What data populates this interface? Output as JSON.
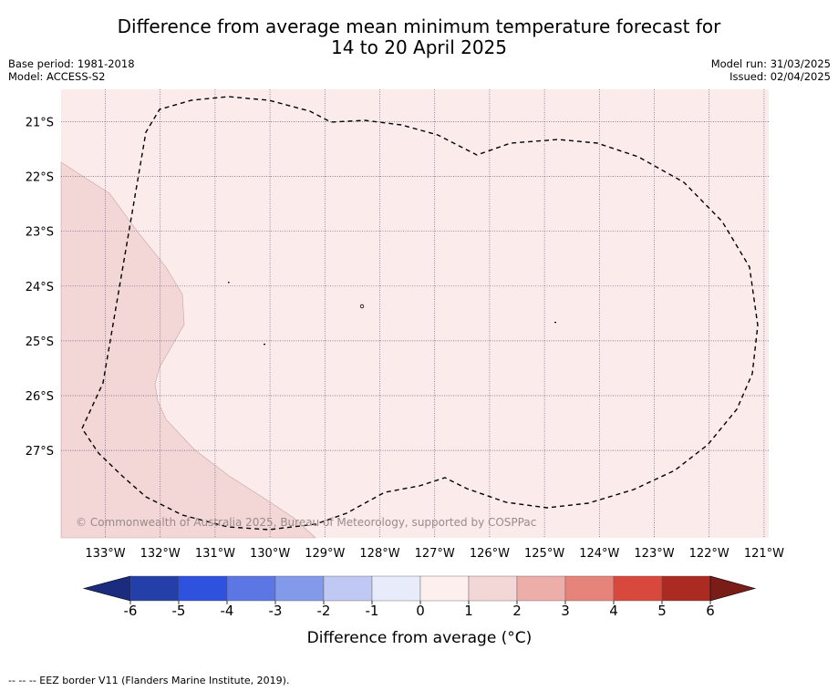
{
  "title_line1": "Difference from average mean minimum temperature forecast for",
  "title_line2": "14 to 20 April 2025",
  "base_period": "Base period: 1981-2018",
  "model": "Model: ACCESS-S2",
  "model_run": "Model run: 31/03/2025",
  "issued": "Issued: 02/04/2025",
  "copyright": "© Commonwealth of Australia 2025, Bureau of Meteorology, supported by COSPPac",
  "footer": "--  --  -- EEZ border V11 (Flanders Marine Institute, 2019).",
  "map": {
    "lat_labels": [
      "21°S",
      "22°S",
      "23°S",
      "24°S",
      "25°S",
      "26°S",
      "27°S"
    ],
    "lon_labels": [
      "133°W",
      "132°W",
      "131°W",
      "130°W",
      "129°W",
      "128°W",
      "127°W",
      "126°W",
      "125°W",
      "124°W",
      "123°W",
      "122°W",
      "121°W"
    ],
    "background_color": "#fbeceb",
    "anomaly_region_color": "#f3d6d6"
  },
  "colorbar": {
    "label": "Difference from average (°C)",
    "ticks": [
      "-6",
      "-5",
      "-4",
      "-3",
      "-2",
      "-1",
      "0",
      "1",
      "2",
      "3",
      "4",
      "5",
      "6"
    ],
    "colors": [
      "#2440a8",
      "#2f52de",
      "#5c77e4",
      "#8399ea",
      "#c0c8f4",
      "#e7ebfa",
      "#fcefed",
      "#f3d6d6",
      "#edaea9",
      "#e6837b",
      "#d9483d",
      "#ab2a22"
    ],
    "under_color": "#1b2c7e",
    "over_color": "#7a1d18"
  }
}
